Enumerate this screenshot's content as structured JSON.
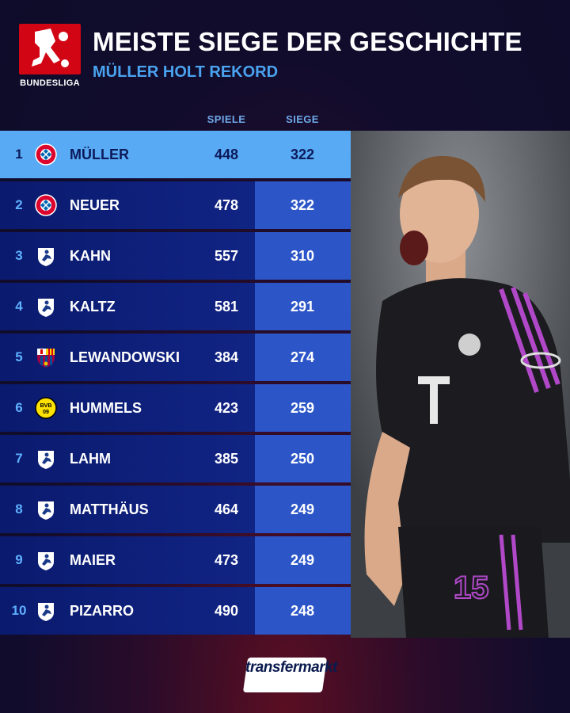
{
  "header": {
    "logo_text": "BUNDESLIGA",
    "title": "MEISTE SIEGE DER GESCHICHTE",
    "subtitle": "MÜLLER HOLT REKORD"
  },
  "columns": {
    "spiele": "SPIELE",
    "siege": "SIEGE"
  },
  "rows": [
    {
      "rank": "1",
      "crest": "fc-bayern-crest",
      "name": "MÜLLER",
      "spiele": "448",
      "siege": "322"
    },
    {
      "rank": "2",
      "crest": "fc-bayern-crest",
      "name": "NEUER",
      "spiele": "478",
      "siege": "322"
    },
    {
      "rank": "3",
      "crest": "player-shield-icon",
      "name": "KAHN",
      "spiele": "557",
      "siege": "310"
    },
    {
      "rank": "4",
      "crest": "player-shield-icon",
      "name": "KALTZ",
      "spiele": "581",
      "siege": "291"
    },
    {
      "rank": "5",
      "crest": "fc-barcelona-crest",
      "name": "LEWANDOWSKI",
      "spiele": "384",
      "siege": "274"
    },
    {
      "rank": "6",
      "crest": "bvb-crest",
      "name": "HUMMELS",
      "spiele": "423",
      "siege": "259"
    },
    {
      "rank": "7",
      "crest": "player-shield-icon",
      "name": "LAHM",
      "spiele": "385",
      "siege": "250"
    },
    {
      "rank": "8",
      "crest": "player-shield-icon",
      "name": "MATTHÄUS",
      "spiele": "464",
      "siege": "249"
    },
    {
      "rank": "9",
      "crest": "player-shield-icon",
      "name": "MAIER",
      "spiele": "473",
      "siege": "249"
    },
    {
      "rank": "10",
      "crest": "player-shield-icon",
      "name": "PIZARRO",
      "spiele": "490",
      "siege": "248"
    }
  ],
  "footer": {
    "brand": "transfermarkt"
  },
  "colors": {
    "bundesliga_red": "#d20515",
    "row_blue": "#13288c",
    "siege_blue": "#2c56c8",
    "highlight_blue": "#58aaf4",
    "subtitle_blue": "#4aa3f0"
  }
}
